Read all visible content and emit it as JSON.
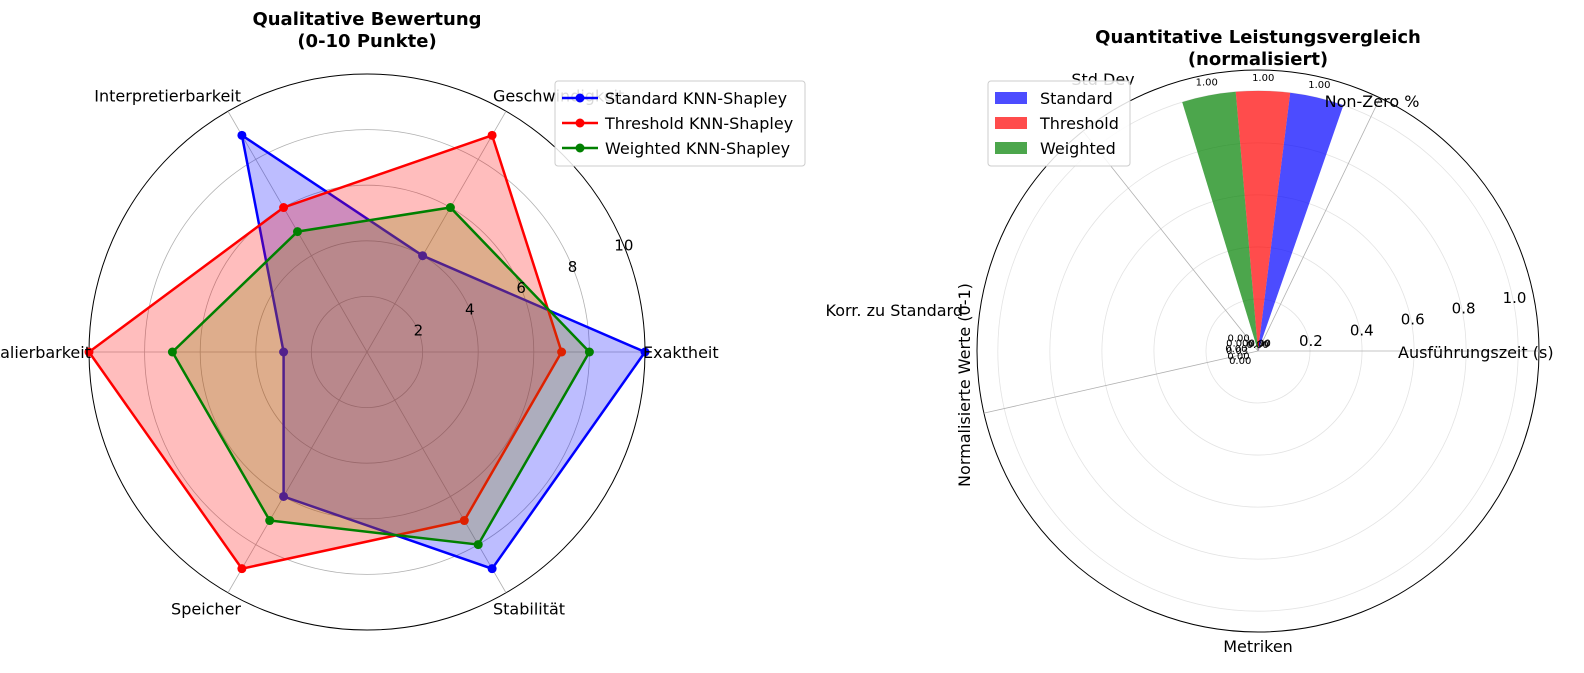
{
  "chart_data": [
    {
      "type": "radar",
      "title": "Qualitative Bewertung\n(0-10 Punkte)",
      "categories": [
        "Exaktheit",
        "Geschwindigkeit",
        "Interpretierbarkeit",
        "Skalierbarkeit",
        "Speicher",
        "Stabilität"
      ],
      "rlim": [
        0,
        10
      ],
      "rticks": [
        2,
        4,
        6,
        8,
        10
      ],
      "grid": true,
      "legend": "top-right",
      "series": [
        {
          "name": "Standard KNN-Shapley",
          "color": "#0000ff",
          "fill": "#0000ff",
          "values": [
            10,
            4,
            9,
            3,
            6,
            9
          ]
        },
        {
          "name": "Threshold KNN-Shapley",
          "color": "#ff0000",
          "fill": "#ff0000",
          "values": [
            7,
            9,
            6,
            10,
            9,
            7
          ]
        },
        {
          "name": "Weighted KNN-Shapley",
          "color": "#008000",
          "fill": "#808000",
          "values": [
            8,
            6,
            5,
            7,
            7,
            8
          ]
        }
      ]
    },
    {
      "type": "polar-bar",
      "title": "Quantitative Leistungsvergleich\n(normalisiert)",
      "categories": [
        "Ausführungszeit (s)",
        "Non-Zero %",
        "Std Dev",
        "Korr. zu Standard"
      ],
      "xlabel": "Metriken",
      "ylabel": "Normalisierte Werte (0-1)",
      "rlim": [
        0,
        1.08
      ],
      "rticks": [
        "0.2",
        "0.4",
        "0.6",
        "0.8",
        "1.0"
      ],
      "grid": true,
      "legend": "top-left",
      "series": [
        {
          "name": "Standard",
          "color": "#0000ff",
          "values": [
            0.0,
            1.0,
            0.0,
            0.0
          ],
          "labels": [
            "0.00",
            "1.00",
            "0.00",
            "0.03"
          ]
        },
        {
          "name": "Threshold",
          "color": "#ff0000",
          "values": [
            0.0,
            1.0,
            0.0,
            0.0
          ],
          "labels": [
            "0.00",
            "1.00",
            "0.00",
            "0.00"
          ]
        },
        {
          "name": "Weighted",
          "color": "#008000",
          "values": [
            0.0,
            1.0,
            0.0,
            0.0
          ],
          "labels": [
            "0.00",
            "1.00",
            "0.00",
            "0.00"
          ]
        }
      ]
    }
  ]
}
